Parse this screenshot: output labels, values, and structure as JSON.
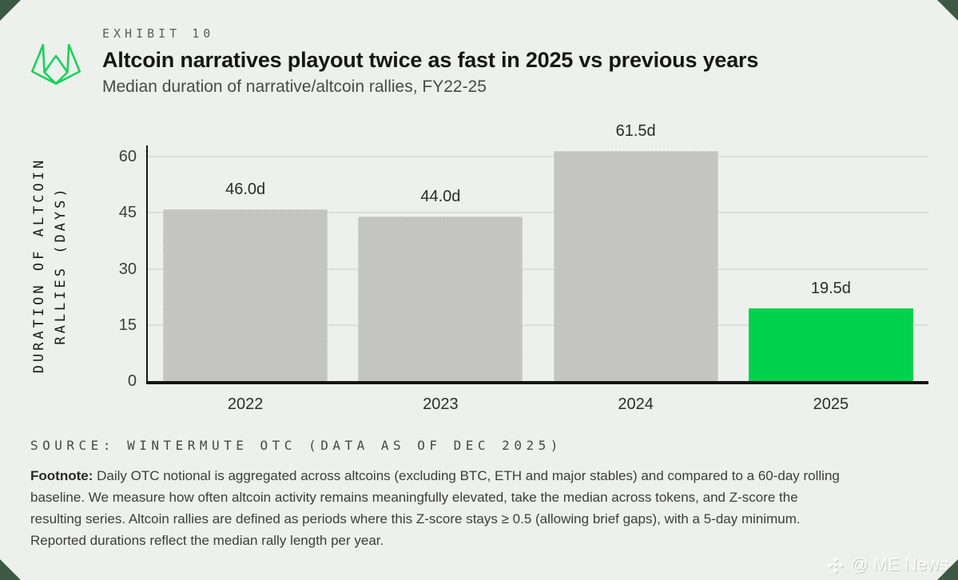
{
  "frame": {
    "corner_color": "#3c5a43",
    "card_color": "#eef0ed"
  },
  "header": {
    "logo_icon": "wintermute-logo",
    "exhibit_label": "EXHIBIT 10",
    "title": "Altcoin narratives playout twice as fast in 2025 vs previous years",
    "subtitle": "Median duration of narrative/altcoin rallies, FY22-25"
  },
  "chart_data": {
    "type": "bar",
    "title": "Altcoin narratives playout twice as fast in 2025 vs previous years",
    "subtitle": "Median duration of narrative/altcoin rallies, FY22-25",
    "categories": [
      "2022",
      "2023",
      "2024",
      "2025"
    ],
    "values": [
      46.0,
      44.0,
      61.5,
      19.5
    ],
    "bar_labels": [
      "46.0d",
      "44.0d",
      "61.5d",
      "19.5d"
    ],
    "highlight_index": 3,
    "xlabel": "",
    "ylabel": "DURATION OF ALTCOIN RALLIES (DAYS)",
    "ylabel_lines": [
      "DURATION OF ALTCOIN",
      "RALLIES (DAYS)"
    ],
    "yticks": [
      0,
      15,
      30,
      45,
      60
    ],
    "ylim": [
      0,
      63
    ],
    "grid": true,
    "legend": false,
    "bar_color": "#c4c5c2",
    "highlight_color": "#00d24e"
  },
  "source": "SOURCE: WINTERMUTE OTC (DATA AS OF DEC 2025)",
  "footnote": {
    "label": "Footnote:",
    "lines": [
      "Daily OTC notional is aggregated across altcoins (excluding BTC, ETH and major stables) and compared to a 60-day rolling",
      "baseline. We measure how often altcoin activity remains meaningfully elevated, take the median across tokens, and Z-score the",
      "resulting series. Altcoin rallies are defined as periods where this Z-score stays ≥ 0.5 (allowing brief gaps), with a 5-day minimum.",
      "Reported durations reflect the median rally length per year."
    ]
  },
  "watermark": {
    "icon": "diamond-logo-icon",
    "text": "@ ME News"
  }
}
